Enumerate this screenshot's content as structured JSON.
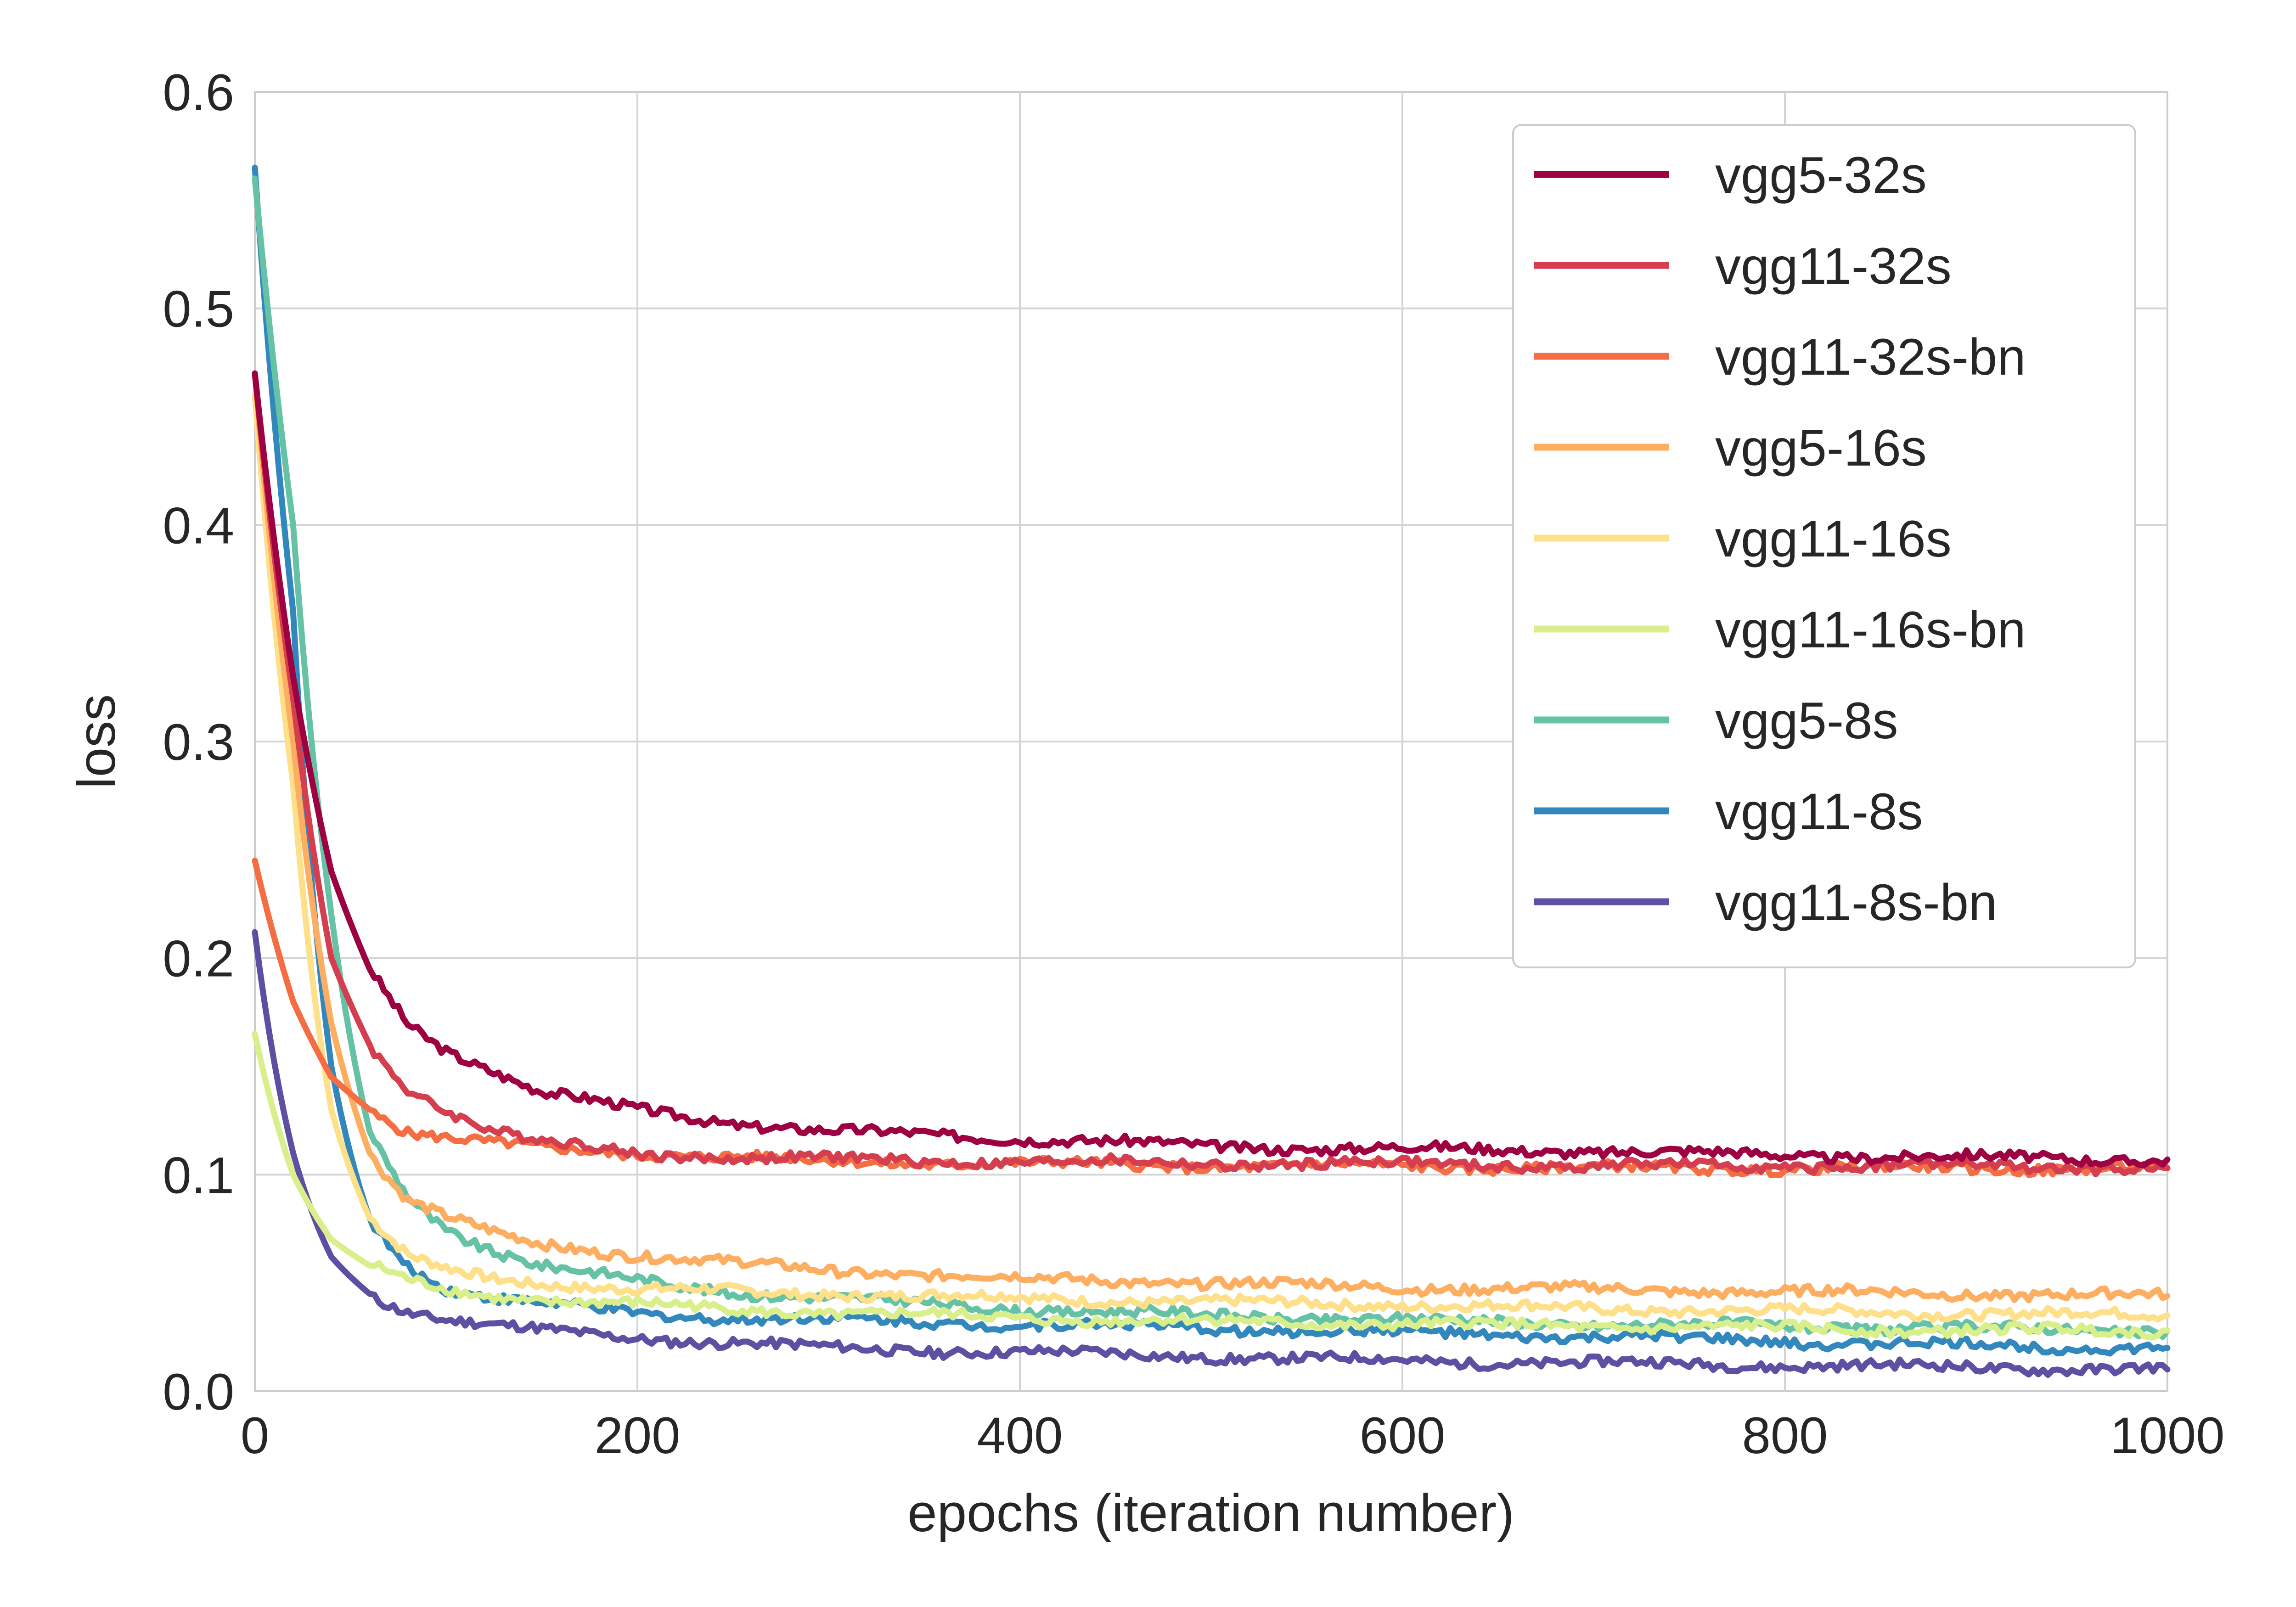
{
  "chart_data": {
    "type": "line",
    "title": "",
    "xlabel": "epochs (iteration number)",
    "ylabel": "loss",
    "xlim": [
      0,
      1000
    ],
    "ylim": [
      0,
      0.6
    ],
    "xticks": [
      0,
      200,
      400,
      600,
      800,
      1000
    ],
    "yticks": [
      0.0,
      0.1,
      0.2,
      0.3,
      0.4,
      0.5,
      0.6
    ],
    "xtick_labels": [
      "0",
      "200",
      "400",
      "600",
      "800",
      "1000"
    ],
    "ytick_labels": [
      "0.0",
      "0.1",
      "0.2",
      "0.3",
      "0.4",
      "0.5",
      "0.6"
    ],
    "grid": true,
    "legend_position": "top-right",
    "x": [
      0,
      20,
      40,
      60,
      80,
      100,
      125,
      150,
      200,
      250,
      300,
      400,
      500,
      600,
      700,
      800,
      900,
      1000
    ],
    "series": [
      {
        "name": "vgg5-32s",
        "color": "#9e0142",
        "values": [
          0.47,
          0.33,
          0.24,
          0.195,
          0.17,
          0.158,
          0.148,
          0.138,
          0.13,
          0.124,
          0.12,
          0.117,
          0.113,
          0.112,
          0.111,
          0.109,
          0.108,
          0.107
        ]
      },
      {
        "name": "vgg11-32s",
        "color": "#d53e4f",
        "values": [
          0.47,
          0.32,
          0.2,
          0.16,
          0.14,
          0.13,
          0.12,
          0.115,
          0.11,
          0.108,
          0.107,
          0.106,
          0.105,
          0.105,
          0.104,
          0.104,
          0.104,
          0.103
        ]
      },
      {
        "name": "vgg11-32s-bn",
        "color": "#f46d43",
        "values": [
          0.245,
          0.18,
          0.145,
          0.13,
          0.12,
          0.117,
          0.114,
          0.112,
          0.11,
          0.108,
          0.106,
          0.105,
          0.104,
          0.104,
          0.103,
          0.103,
          0.103,
          0.103
        ]
      },
      {
        "name": "vgg5-16s",
        "color": "#fdae61",
        "values": [
          0.47,
          0.3,
          0.17,
          0.11,
          0.088,
          0.08,
          0.073,
          0.068,
          0.063,
          0.059,
          0.056,
          0.052,
          0.05,
          0.048,
          0.047,
          0.046,
          0.045,
          0.044
        ]
      },
      {
        "name": "vgg11-16s",
        "color": "#fee08b",
        "values": [
          0.46,
          0.28,
          0.13,
          0.08,
          0.062,
          0.056,
          0.052,
          0.05,
          0.047,
          0.046,
          0.045,
          0.043,
          0.041,
          0.04,
          0.038,
          0.037,
          0.036,
          0.035
        ]
      },
      {
        "name": "vgg11-16s-bn",
        "color": "#d9ef8b",
        "values": [
          0.165,
          0.1,
          0.07,
          0.058,
          0.051,
          0.047,
          0.044,
          0.042,
          0.04,
          0.038,
          0.036,
          0.034,
          0.032,
          0.031,
          0.03,
          0.029,
          0.028,
          0.028
        ]
      },
      {
        "name": "vgg5-8s",
        "color": "#66c2a5",
        "values": [
          0.56,
          0.4,
          0.22,
          0.12,
          0.09,
          0.075,
          0.065,
          0.058,
          0.051,
          0.046,
          0.043,
          0.038,
          0.035,
          0.033,
          0.031,
          0.03,
          0.029,
          0.028
        ]
      },
      {
        "name": "vgg11-8s",
        "color": "#3288bd",
        "values": [
          0.565,
          0.36,
          0.15,
          0.08,
          0.058,
          0.048,
          0.043,
          0.04,
          0.036,
          0.034,
          0.033,
          0.031,
          0.029,
          0.027,
          0.025,
          0.023,
          0.021,
          0.02
        ]
      },
      {
        "name": "vgg11-8s-bn",
        "color": "#5e4fa2",
        "values": [
          0.212,
          0.11,
          0.062,
          0.045,
          0.037,
          0.033,
          0.03,
          0.028,
          0.025,
          0.022,
          0.02,
          0.018,
          0.016,
          0.014,
          0.013,
          0.012,
          0.011,
          0.01
        ]
      }
    ]
  }
}
